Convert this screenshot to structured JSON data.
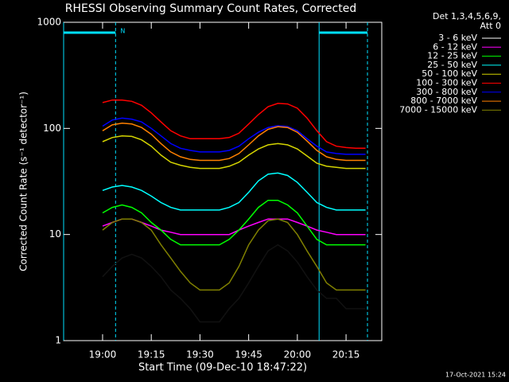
{
  "chart_data": {
    "type": "line",
    "title": "RHESSI Observing Summary Count Rates, Corrected",
    "xlabel": "Start Time (09-Dec-10 18:47:22)",
    "ylabel": "Corrected Count Rate (s⁻¹ detector⁻¹)",
    "legend_title": [
      "Det 1,3,4,5,6,9,",
      "Att 0"
    ],
    "timestamp": "17-Oct-2021 15:24",
    "log_y": true,
    "xlim": [
      1128,
      1226
    ],
    "ylim": [
      1,
      1000
    ],
    "xticks": [
      {
        "value": 1140,
        "label": "19:00"
      },
      {
        "value": 1155,
        "label": "19:15"
      },
      {
        "value": 1170,
        "label": "19:30"
      },
      {
        "value": 1185,
        "label": "19:45"
      },
      {
        "value": 1200,
        "label": "20:00"
      },
      {
        "value": 1215,
        "label": "20:15"
      }
    ],
    "yticks": [
      1,
      10,
      100,
      1000
    ],
    "intervals": [
      {
        "start": 1128,
        "end": 1144,
        "label": "N",
        "color": "#00e0ff"
      },
      {
        "start": 1206.7,
        "end": 1221.6,
        "color": "#00e0ff"
      }
    ],
    "x": [
      1140,
      1143,
      1146,
      1149,
      1152,
      1155,
      1158,
      1161,
      1164,
      1167,
      1170,
      1173,
      1176,
      1179,
      1182,
      1185,
      1188,
      1191,
      1194,
      1197,
      1200,
      1203,
      1206,
      1209,
      1212,
      1215,
      1218,
      1221
    ],
    "series": [
      {
        "name": "3 - 6 keV",
        "color": "#000000",
        "values": [
          4,
          5,
          6,
          6.5,
          6,
          5,
          4,
          3,
          2.5,
          2,
          1.5,
          1.5,
          1.5,
          2,
          2.5,
          3.5,
          5,
          7,
          8,
          7,
          5.5,
          4,
          3,
          2.5,
          2.5,
          2,
          2,
          2
        ]
      },
      {
        "name": "6 - 12 keV",
        "color": "#ff00ff",
        "values": [
          12,
          13,
          14,
          14,
          13,
          12,
          11,
          10.5,
          10,
          10,
          10,
          10,
          10,
          10,
          11,
          12,
          13,
          14,
          14,
          14,
          13,
          12,
          11,
          10.5,
          10,
          10,
          10,
          10
        ]
      },
      {
        "name": "12 - 25 keV",
        "color": "#00ff00",
        "values": [
          16,
          18,
          19,
          18,
          16,
          13,
          11,
          9,
          8,
          8,
          8,
          8,
          8,
          9,
          11,
          14,
          18,
          21,
          21,
          19,
          16,
          12,
          9,
          8,
          8,
          8,
          8,
          8
        ]
      },
      {
        "name": "25 - 50 keV",
        "color": "#00ffff",
        "values": [
          26,
          28,
          29,
          28,
          26,
          23,
          20,
          18,
          17,
          17,
          17,
          17,
          17,
          18,
          20,
          25,
          32,
          37,
          38,
          36,
          31,
          25,
          20,
          18,
          17,
          17,
          17,
          17
        ]
      },
      {
        "name": "50 - 100 keV",
        "color": "#d4d400",
        "values": [
          75,
          82,
          85,
          84,
          78,
          68,
          56,
          48,
          45,
          43,
          42,
          42,
          42,
          44,
          48,
          56,
          64,
          70,
          72,
          70,
          64,
          55,
          47,
          44,
          43,
          42,
          42,
          42
        ]
      },
      {
        "name": "100 - 300 keV",
        "color": "#ff0000",
        "values": [
          175,
          185,
          185,
          180,
          165,
          140,
          115,
          95,
          85,
          80,
          80,
          80,
          80,
          82,
          90,
          110,
          135,
          160,
          172,
          170,
          155,
          125,
          95,
          75,
          68,
          66,
          65,
          65
        ]
      },
      {
        "name": "300 - 800 keV",
        "color": "#0000ff",
        "values": [
          105,
          120,
          125,
          122,
          115,
          100,
          85,
          72,
          65,
          62,
          60,
          60,
          60,
          62,
          68,
          80,
          92,
          102,
          106,
          104,
          95,
          80,
          68,
          60,
          58,
          57,
          57,
          57
        ]
      },
      {
        "name": "800 - 7000 keV",
        "color": "#ff8000",
        "values": [
          95,
          108,
          112,
          110,
          102,
          88,
          72,
          60,
          54,
          51,
          50,
          50,
          50,
          52,
          58,
          70,
          85,
          98,
          104,
          102,
          92,
          76,
          62,
          54,
          51,
          50,
          50,
          50
        ]
      },
      {
        "name": "7000 - 15000 keV",
        "color": "#808000",
        "values": [
          11,
          13,
          14,
          14,
          13,
          11,
          8,
          6,
          4.5,
          3.5,
          3,
          3,
          3,
          3.5,
          5,
          8,
          11,
          13.5,
          14,
          13,
          10,
          7,
          5,
          3.5,
          3,
          3,
          3,
          3
        ]
      }
    ]
  }
}
